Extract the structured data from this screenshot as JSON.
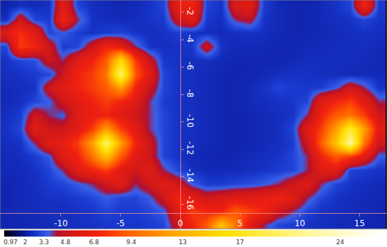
{
  "chart_data": {
    "type": "heatmap",
    "grid": false,
    "xlim": [
      -15.1,
      17.3
    ],
    "xticks": [
      -10,
      -5,
      0,
      5,
      10,
      15
    ],
    "ylim": [
      -17.8,
      -1.1
    ],
    "yticks": [
      -2,
      -4,
      -6,
      -8,
      -10,
      -12,
      -14,
      -16
    ],
    "x": [
      -14.6,
      -13.4,
      -12.2,
      -11.0,
      -9.8,
      -8.6,
      -7.4,
      -6.2,
      -5.0,
      -3.8,
      -2.6,
      -1.4,
      -0.2,
      1.0,
      2.2,
      3.4,
      4.6,
      5.8,
      7.0,
      8.2,
      9.4,
      10.6,
      11.8,
      13.0,
      14.2,
      15.4,
      16.6
    ],
    "y": [
      -1.5,
      -2.5,
      -3.5,
      -4.5,
      -5.5,
      -6.5,
      -7.5,
      -8.5,
      -9.5,
      -10.5,
      -11.5,
      -12.5,
      -13.5,
      -14.5,
      -15.5,
      -16.5,
      -17.5
    ],
    "z": [
      [
        2.2,
        2.5,
        2.4,
        2.6,
        6,
        3,
        2.5,
        2.4,
        2.3,
        2.4,
        2.6,
        3,
        6.5,
        7,
        3,
        2.6,
        5.5,
        6,
        2.8,
        2.4,
        2.3,
        2.3,
        2.4,
        2.6,
        3,
        7,
        2.8
      ],
      [
        2.5,
        5,
        3,
        2.8,
        7,
        4,
        2.6,
        2.5,
        2.4,
        2.5,
        2.6,
        2.8,
        5,
        6,
        2.7,
        2.5,
        4,
        4.5,
        2.6,
        2.4,
        2.3,
        2.3,
        2.4,
        2.5,
        2.6,
        3,
        2.6
      ],
      [
        6,
        7.5,
        6,
        3,
        3.5,
        2.8,
        2.6,
        2.8,
        3,
        2.6,
        2.5,
        2.6,
        2.8,
        2.6,
        2.5,
        2.4,
        2.5,
        2.6,
        2.5,
        2.4,
        2.3,
        2.3,
        2.4,
        2.4,
        2.5,
        2.6,
        2.5
      ],
      [
        3,
        8,
        7,
        5,
        2.8,
        3,
        5,
        7,
        6,
        4,
        2.6,
        2.5,
        2.6,
        2.7,
        5,
        2.6,
        2.4,
        2.4,
        2.4,
        2.3,
        2.3,
        2.4,
        2.4,
        2.5,
        2.5,
        2.5,
        2.4
      ],
      [
        2.6,
        3,
        3.2,
        5,
        4,
        6,
        7,
        9,
        16,
        8,
        5,
        2.7,
        2.6,
        2.5,
        2.5,
        2.4,
        2.3,
        2.3,
        2.3,
        2.3,
        2.4,
        2.5,
        2.5,
        2.5,
        2.5,
        2.4,
        2.4
      ],
      [
        2.5,
        2.6,
        2.8,
        3,
        5,
        7,
        8,
        10,
        20,
        9,
        6,
        3,
        2.6,
        2.5,
        2.4,
        2.3,
        2.3,
        2.3,
        2.4,
        2.5,
        2.6,
        2.6,
        2.5,
        2.5,
        2.4,
        2.4,
        2.4
      ],
      [
        2.4,
        2.5,
        2.6,
        5,
        6,
        7,
        8,
        9,
        12,
        7,
        5,
        3,
        2.6,
        2.5,
        2.4,
        2.3,
        2.3,
        2.4,
        2.6,
        3,
        2.8,
        2.7,
        2.8,
        3.5,
        5,
        4,
        2.6
      ],
      [
        2.4,
        2.5,
        3,
        3.5,
        5,
        6,
        7,
        8,
        7,
        6,
        4,
        2.8,
        2.6,
        2.5,
        2.4,
        2.3,
        2.3,
        2.4,
        2.5,
        2.6,
        2.7,
        3,
        6,
        7,
        8,
        6,
        4
      ],
      [
        2.5,
        2.8,
        5,
        4,
        3.5,
        6,
        6.5,
        7,
        6,
        5,
        4,
        3,
        2.6,
        2.5,
        2.4,
        2.3,
        2.3,
        2.3,
        2.4,
        2.5,
        2.6,
        4,
        7,
        9,
        10,
        8,
        5
      ],
      [
        2.6,
        3,
        6,
        5,
        5,
        6,
        8,
        12,
        8,
        6,
        4,
        3,
        2.6,
        2.5,
        2.4,
        2.3,
        2.3,
        2.3,
        2.4,
        2.5,
        3,
        6,
        8,
        12,
        18,
        12,
        6
      ],
      [
        2.5,
        2.6,
        4,
        6,
        6.5,
        8,
        12,
        20,
        12,
        7,
        5,
        3,
        2.6,
        2.5,
        2.4,
        2.3,
        2.3,
        2.3,
        2.4,
        2.5,
        2.8,
        5,
        9,
        14,
        22,
        10,
        5
      ],
      [
        2.4,
        2.5,
        2.8,
        3.5,
        6,
        7,
        10,
        14,
        9,
        6,
        5,
        3,
        2.6,
        2.4,
        2.3,
        2.3,
        2.3,
        2.4,
        2.5,
        2.6,
        3,
        4,
        7,
        9,
        8,
        6,
        3.5
      ],
      [
        2.4,
        2.4,
        2.6,
        3,
        4,
        6,
        7,
        8,
        6,
        5,
        6,
        4,
        3,
        2.5,
        2.4,
        2.4,
        2.4,
        2.5,
        2.6,
        2.8,
        3,
        4,
        6,
        6,
        3,
        2.8,
        2.6
      ],
      [
        2.3,
        2.4,
        2.5,
        2.8,
        3,
        3.5,
        4,
        5,
        6,
        4,
        5,
        6,
        5,
        3.5,
        2.8,
        2.8,
        3,
        3.2,
        3.5,
        4,
        5,
        6,
        4,
        3,
        2.6,
        2.5,
        2.4
      ],
      [
        2.3,
        2.4,
        2.5,
        2.6,
        2.6,
        2.8,
        3,
        3.5,
        3,
        3,
        3.5,
        5,
        7,
        6,
        5,
        5.5,
        6,
        6,
        6.5,
        7,
        6,
        4,
        3,
        2.6,
        2.5,
        2.4,
        2.4
      ],
      [
        2.3,
        2.4,
        2.4,
        2.5,
        2.5,
        2.6,
        2.7,
        3,
        2.8,
        2.8,
        3,
        3.5,
        6,
        8,
        7,
        7,
        9,
        8,
        7,
        5,
        4,
        3,
        2.6,
        2.5,
        2.4,
        2.4,
        2.3
      ],
      [
        2.3,
        2.3,
        2.4,
        2.4,
        2.5,
        2.5,
        2.6,
        2.7,
        2.7,
        2.7,
        2.8,
        3,
        5,
        7,
        9,
        14,
        10,
        6,
        4,
        3,
        2.8,
        2.6,
        2.5,
        2.4,
        2.4,
        2.3,
        2.3
      ]
    ],
    "colorbar": {
      "range": [
        0.5,
        27
      ],
      "ticks": [
        0.97,
        2,
        3.3,
        4.8,
        6.8,
        9.4,
        13,
        17,
        24
      ]
    }
  }
}
